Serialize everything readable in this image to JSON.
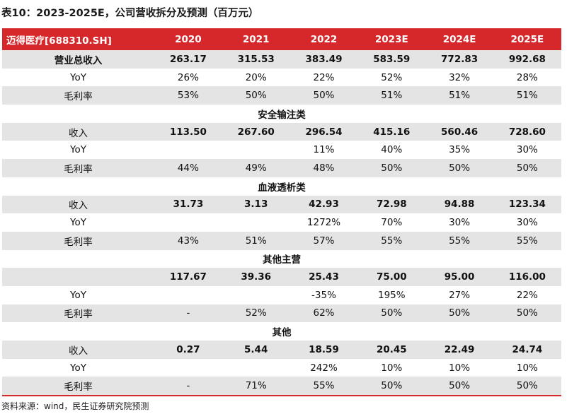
{
  "title": "表10：2023-2025E，公司营收拆分及预测（百万元）",
  "header": {
    "company": "迈得医疗[688310.SH]",
    "years": [
      "2020",
      "2021",
      "2022",
      "2023E",
      "2024E",
      "2025E"
    ]
  },
  "rows": [
    {
      "kind": "data",
      "shade": true,
      "label": "营业总收入",
      "label_bold": true,
      "values_bold": true,
      "values": [
        "263.17",
        "315.53",
        "383.49",
        "583.59",
        "772.83",
        "992.68"
      ]
    },
    {
      "kind": "data",
      "shade": false,
      "label": "YoY",
      "label_bold": false,
      "values_bold": false,
      "values": [
        "26%",
        "20%",
        "22%",
        "52%",
        "32%",
        "28%"
      ]
    },
    {
      "kind": "data",
      "shade": true,
      "label": "毛利率",
      "label_bold": false,
      "values_bold": false,
      "values": [
        "53%",
        "50%",
        "50%",
        "51%",
        "51%",
        "51%"
      ]
    },
    {
      "kind": "section",
      "shade": false,
      "label": "安全输注类"
    },
    {
      "kind": "data",
      "shade": true,
      "label": "收入",
      "label_bold": false,
      "values_bold": true,
      "values": [
        "113.50",
        "267.60",
        "296.54",
        "415.16",
        "560.46",
        "728.60"
      ]
    },
    {
      "kind": "data",
      "shade": false,
      "label": "YoY",
      "label_bold": false,
      "values_bold": false,
      "values": [
        "",
        "",
        "11%",
        "40%",
        "35%",
        "30%"
      ]
    },
    {
      "kind": "data",
      "shade": true,
      "label": "毛利率",
      "label_bold": false,
      "values_bold": false,
      "values": [
        "44%",
        "49%",
        "48%",
        "50%",
        "50%",
        "50%"
      ]
    },
    {
      "kind": "section",
      "shade": false,
      "label": "血液透析类"
    },
    {
      "kind": "data",
      "shade": true,
      "label": "收入",
      "label_bold": false,
      "values_bold": true,
      "values": [
        "31.73",
        "3.13",
        "42.93",
        "72.98",
        "94.88",
        "123.34"
      ]
    },
    {
      "kind": "data",
      "shade": false,
      "label": "YoY",
      "label_bold": false,
      "values_bold": false,
      "values": [
        "",
        "",
        "1272%",
        "70%",
        "30%",
        "30%"
      ]
    },
    {
      "kind": "data",
      "shade": true,
      "label": "毛利率",
      "label_bold": false,
      "values_bold": false,
      "values": [
        "43%",
        "51%",
        "57%",
        "55%",
        "55%",
        "55%"
      ]
    },
    {
      "kind": "section",
      "shade": false,
      "label": "其他主营"
    },
    {
      "kind": "data",
      "shade": true,
      "label": "",
      "label_bold": false,
      "values_bold": true,
      "values": [
        "117.67",
        "39.36",
        "25.43",
        "75.00",
        "95.00",
        "116.00"
      ]
    },
    {
      "kind": "data",
      "shade": false,
      "label": "YoY",
      "label_bold": false,
      "values_bold": false,
      "values": [
        "",
        "",
        "-35%",
        "195%",
        "27%",
        "22%"
      ]
    },
    {
      "kind": "data",
      "shade": true,
      "label": "毛利率",
      "label_bold": false,
      "values_bold": false,
      "values": [
        "-",
        "52%",
        "62%",
        "50%",
        "50%",
        "50%"
      ]
    },
    {
      "kind": "section",
      "shade": false,
      "label": "其他"
    },
    {
      "kind": "data",
      "shade": true,
      "label": "收入",
      "label_bold": false,
      "values_bold": true,
      "values": [
        "0.27",
        "5.44",
        "18.59",
        "20.45",
        "22.49",
        "24.74"
      ]
    },
    {
      "kind": "data",
      "shade": false,
      "label": "YoY",
      "label_bold": false,
      "values_bold": false,
      "values": [
        "",
        "",
        "242%",
        "10%",
        "10%",
        "10%"
      ]
    },
    {
      "kind": "data",
      "shade": true,
      "label": "毛利率",
      "label_bold": false,
      "values_bold": false,
      "values": [
        "-",
        "71%",
        "55%",
        "50%",
        "50%",
        "50%"
      ]
    }
  ],
  "source": "资料来源：wind，民生证券研究院预测",
  "colors": {
    "header_bg": "#d6272b",
    "shade_bg": "#e4e4e4",
    "header_text": "#ffffff"
  }
}
